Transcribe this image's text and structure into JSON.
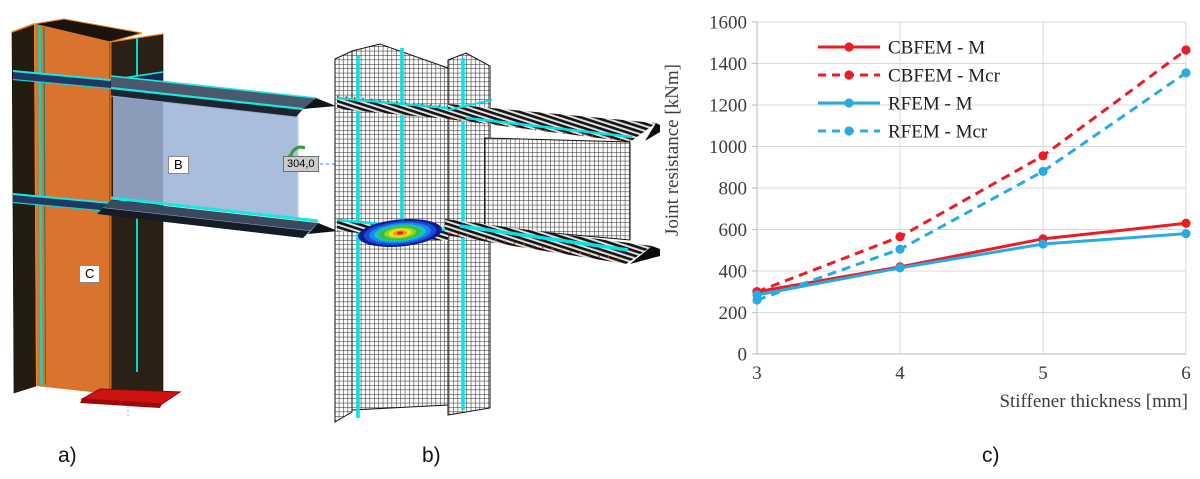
{
  "figure": {
    "captions": {
      "a": "a)",
      "b": "b)",
      "c": "c)"
    }
  },
  "panel_a": {
    "beam_label": "B",
    "column_label": "C",
    "dimension_label": "304,0"
  },
  "colors": {
    "cbfem_red": "#EC1C24",
    "rfem_blue": "#29ABE2",
    "cad_orange": "#D9732E",
    "edge_cyan": "#00E2D5",
    "stiffener_navy": "#1F3864",
    "base_plate_red": "#CF1212",
    "grid_gray": "#D9D9D9"
  },
  "chart_data": {
    "type": "line",
    "title": "",
    "xlabel": "Stiffener thickness [mm]",
    "ylabel": "Joint resistance [kNm]",
    "x": [
      3,
      4,
      5,
      6
    ],
    "xlim": [
      3,
      6
    ],
    "ylim": [
      0,
      1600
    ],
    "ytick_step": 200,
    "grid": true,
    "legend_position": "upper-left-inside",
    "series": [
      {
        "name": "CBFEM - M",
        "color": "#EC1C24",
        "style": "solid",
        "values": [
          300,
          420,
          555,
          630
        ]
      },
      {
        "name": "CBFEM - Mcr",
        "color": "#EC1C24",
        "style": "dashed",
        "values": [
          300,
          565,
          955,
          1465
        ]
      },
      {
        "name": "RFEM - M",
        "color": "#29ABE2",
        "style": "solid",
        "values": [
          285,
          415,
          530,
          580
        ]
      },
      {
        "name": "RFEM - Mcr",
        "color": "#29ABE2",
        "style": "dashed",
        "values": [
          260,
          505,
          880,
          1355
        ]
      }
    ]
  }
}
